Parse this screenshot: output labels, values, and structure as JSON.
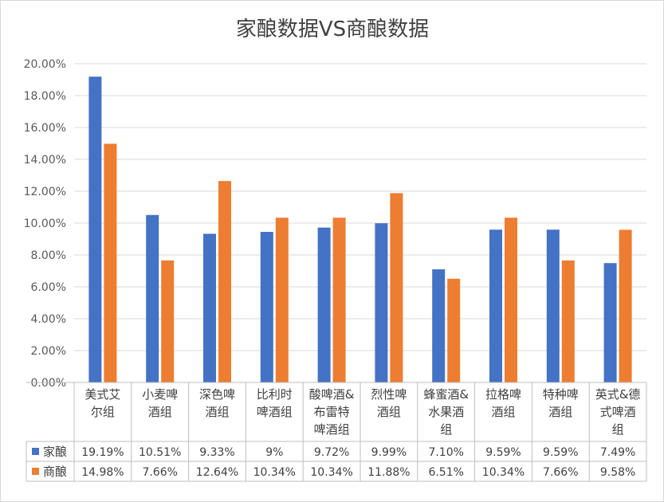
{
  "chart_data": {
    "type": "bar",
    "title": "家酿数据VS商酿数据",
    "categories": [
      [
        "美式艾",
        "尔组"
      ],
      [
        "小麦啤",
        "酒组"
      ],
      [
        "深色啤",
        "酒组"
      ],
      [
        "比利时",
        "啤酒组"
      ],
      [
        "酸啤酒&",
        "布雷特",
        "啤酒组"
      ],
      [
        "烈性啤",
        "酒组"
      ],
      [
        "蜂蜜酒&",
        "水果酒",
        "组"
      ],
      [
        "拉格啤",
        "酒组"
      ],
      [
        "特种啤",
        "酒组"
      ],
      [
        "英式&德",
        "式啤酒",
        "组"
      ]
    ],
    "series": [
      {
        "name": "家酿",
        "color": "#4472C4",
        "values": [
          19.19,
          10.51,
          9.33,
          9.45,
          9.72,
          9.99,
          7.1,
          9.59,
          9.59,
          7.49
        ],
        "labels": [
          "19.19%",
          "10.51%",
          "9.33%",
          "9%",
          "9.72%",
          "9.99%",
          "7.10%",
          "9.59%",
          "9.59%",
          "7.49%"
        ]
      },
      {
        "name": "商酿",
        "color": "#ED7D31",
        "values": [
          14.98,
          7.66,
          12.64,
          10.34,
          10.34,
          11.88,
          6.51,
          10.34,
          7.66,
          9.58
        ],
        "labels": [
          "14.98%",
          "7.66%",
          "12.64%",
          "10.34%",
          "10.34%",
          "11.88%",
          "6.51%",
          "10.34%",
          "7.66%",
          "9.58%"
        ]
      }
    ],
    "ylim": [
      0,
      20
    ],
    "yticks": [
      "0.00%",
      "2.00%",
      "4.00%",
      "6.00%",
      "8.00%",
      "10.00%",
      "12.00%",
      "14.00%",
      "16.00%",
      "18.00%",
      "20.00%"
    ],
    "grid": true,
    "legend": "data-table",
    "xlabel": "",
    "ylabel": ""
  }
}
